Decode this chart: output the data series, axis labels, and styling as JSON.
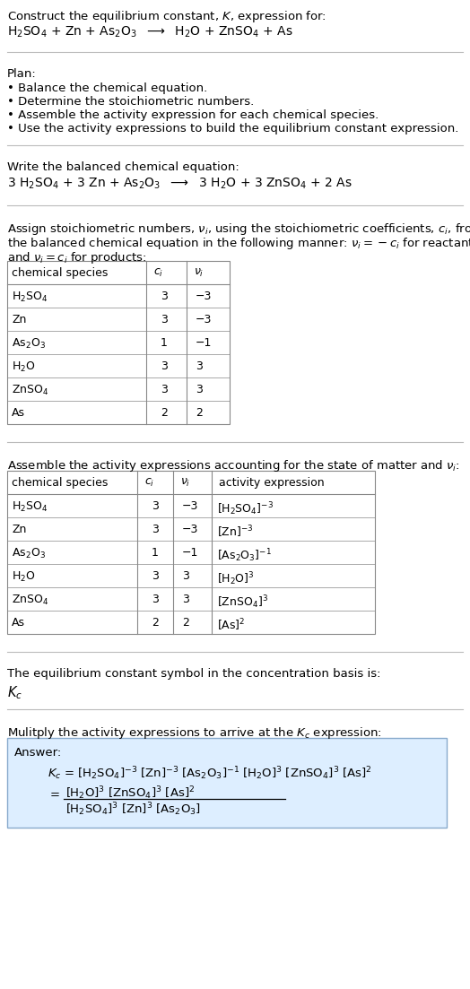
{
  "bg_color": "#ffffff",
  "text_color": "#000000",
  "table_border_color": "#888888",
  "answer_box_color": "#ddeeff",
  "answer_box_border": "#88aacc",
  "font_size": 9.5,
  "line_color": "#cccccc",
  "table1_rows": [
    [
      "H$_2$SO$_4$",
      "3",
      "−3"
    ],
    [
      "Zn",
      "3",
      "−3"
    ],
    [
      "As$_2$O$_3$",
      "1",
      "−1"
    ],
    [
      "H$_2$O",
      "3",
      "3"
    ],
    [
      "ZnSO$_4$",
      "3",
      "3"
    ],
    [
      "As",
      "2",
      "2"
    ]
  ],
  "table2_rows": [
    [
      "H$_2$SO$_4$",
      "3",
      "−3",
      "[H$_2$SO$_4$]$^{-3}$"
    ],
    [
      "Zn",
      "3",
      "−3",
      "[Zn]$^{-3}$"
    ],
    [
      "As$_2$O$_3$",
      "1",
      "−1",
      "[As$_2$O$_3$]$^{-1}$"
    ],
    [
      "H$_2$O",
      "3",
      "3",
      "[H$_2$O]$^3$"
    ],
    [
      "ZnSO$_4$",
      "3",
      "3",
      "[ZnSO$_4$]$^3$"
    ],
    [
      "As",
      "2",
      "2",
      "[As]$^2$"
    ]
  ]
}
